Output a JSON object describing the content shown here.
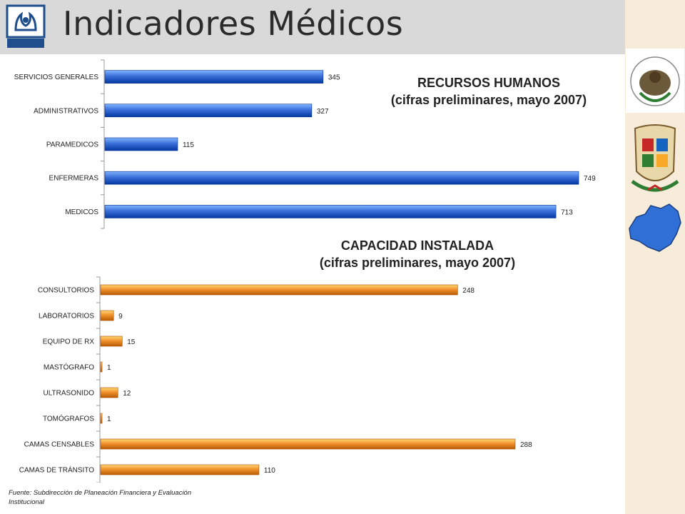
{
  "page": {
    "title": "Indicadores Médicos",
    "logo_text": "ISSSTE",
    "footer": "Fuente: Subdirección de Planeación Financiera y Evaluación Institucional"
  },
  "chart_data": [
    {
      "type": "bar",
      "orientation": "horizontal",
      "title": "RECURSOS HUMANOS",
      "subtitle": "(cifras preliminares, mayo 2007)",
      "categories": [
        "SERVICIOS GENERALES",
        "ADMINISTRATIVOS",
        "PARAMEDICOS",
        "ENFERMERAS",
        "MEDICOS"
      ],
      "values": [
        345,
        327,
        115,
        749,
        713
      ],
      "color": "#3a6fd8",
      "data_labels": true,
      "grid": false,
      "legend": "none"
    },
    {
      "type": "bar",
      "orientation": "horizontal",
      "title": "CAPACIDAD INSTALADA",
      "subtitle": "(cifras preliminares, mayo 2007)",
      "categories": [
        "CONSULTORIOS",
        "LABORATORIOS",
        "EQUIPO DE RX",
        "MASTÓGRAFO",
        "ULTRASONIDO",
        "TOMÓGRAFOS",
        "CAMAS CENSABLES",
        "CAMAS DE TRÁNSITO"
      ],
      "values": [
        248,
        9,
        15,
        1,
        12,
        1,
        288,
        110
      ],
      "color": "#f0922e",
      "data_labels": true,
      "grid": false,
      "legend": "none"
    }
  ]
}
